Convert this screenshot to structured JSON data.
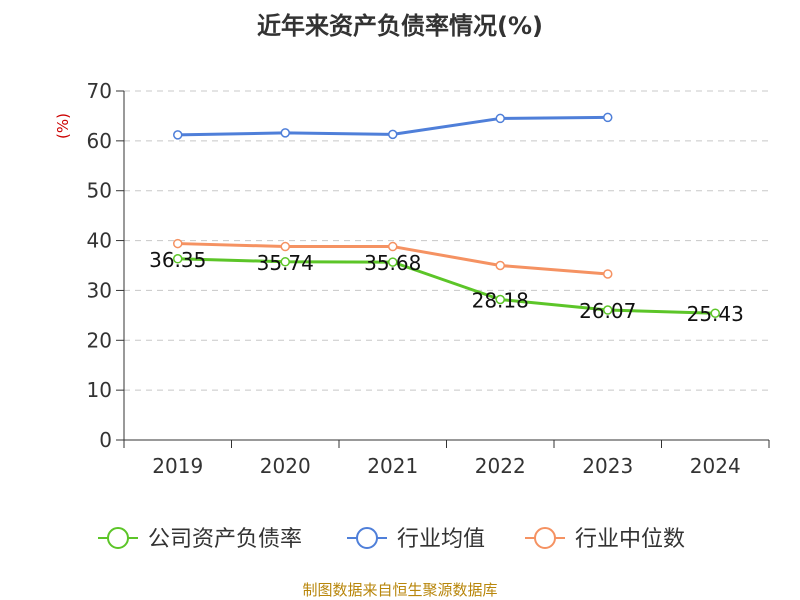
{
  "chart_data": {
    "type": "line",
    "title": "近年来资产负债率情况(%)",
    "ylabel": "(%)",
    "xlabel": "",
    "categories": [
      "2019",
      "2020",
      "2021",
      "2022",
      "2023",
      "2024"
    ],
    "ylim": [
      0,
      70
    ],
    "yticks": [
      0,
      10,
      20,
      30,
      40,
      50,
      60,
      70
    ],
    "grid": true,
    "legend_position": "bottom",
    "series": [
      {
        "name": "公司资产负债率",
        "color": "#5cc528",
        "values": [
          36.35,
          35.74,
          35.68,
          28.18,
          26.07,
          25.43
        ],
        "labels": [
          "36.35",
          "35.74",
          "35.68",
          "28.18",
          "26.07",
          "25.43"
        ]
      },
      {
        "name": "行业均值",
        "color": "#4f7fd9",
        "values": [
          61.2,
          61.6,
          61.3,
          64.5,
          64.7,
          null
        ]
      },
      {
        "name": "行业中位数",
        "color": "#f59262",
        "values": [
          39.4,
          38.8,
          38.8,
          35.0,
          33.3,
          null
        ]
      }
    ]
  },
  "footer": {
    "source": "制图数据来自恒生聚源数据库"
  }
}
